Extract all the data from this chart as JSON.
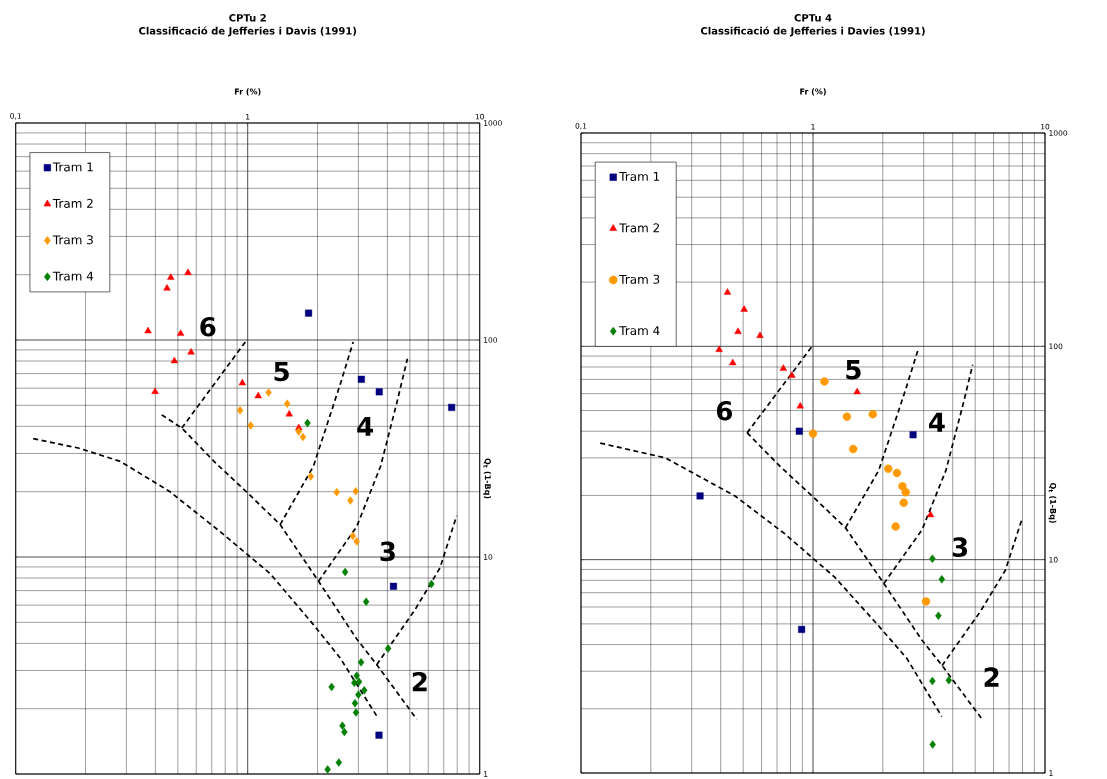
{
  "chart_data": [
    {
      "type": "scatter",
      "title": "CPTu 2",
      "subtitle": "Classificació de Jefferies i Davis (1991)",
      "xlabel": "Fr (%)",
      "ylabel": "Q$_{t}$ (1-Bq)",
      "log": "xy",
      "grid": true,
      "legend": "top left",
      "xlim": [
        0.1,
        10
      ],
      "ylim": [
        1,
        1000
      ],
      "xticks": [
        {
          "value": 0.1,
          "label": "0,1"
        },
        1,
        10
      ],
      "yticks": [
        1,
        10,
        100,
        1000
      ],
      "series": [
        {
          "name": "Tram 1",
          "marker": "square",
          "color": "#000080",
          "x": [
            1.83,
            3.09,
            3.69,
            7.57,
            4.25,
            3.68
          ],
          "values": [
            133,
            65.9,
            57.7,
            48.9,
            7.33,
            1.51
          ]
        },
        {
          "name": "Tram 2",
          "marker": "triangle",
          "color": "#ff0000",
          "x": [
            0.553,
            0.466,
            0.449,
            0.372,
            0.514,
            0.57,
            0.483,
            0.399,
            0.948,
            1.11,
            1.51,
            1.66
          ],
          "values": [
            204,
            194,
            173,
            110,
            107,
            87.7,
            80,
            57.7,
            63.3,
            55.2,
            45.5,
            39.3
          ]
        },
        {
          "name": "Tram 3",
          "marker": "diamond",
          "color": "#ff9900",
          "x": [
            1.23,
            1.48,
            0.927,
            1.03,
            1.66,
            1.73,
            1.87,
            2.42,
            2.92,
            2.77,
            2.84,
            2.95
          ],
          "values": [
            57.3,
            50.9,
            47.4,
            40.4,
            37.9,
            35.7,
            23.5,
            19.9,
            20.1,
            18.2,
            12.5,
            11.8
          ]
        },
        {
          "name": "Tram 4",
          "marker": "diamond",
          "color": "#008000",
          "x": [
            1.81,
            2.63,
            3.24,
            6.19,
            4.03,
            3.08,
            2.95,
            3.02,
            2.88,
            3.18,
            3.0,
            2.3,
            2.9,
            2.93,
            2.56,
            2.61,
            2.47,
            2.21
          ],
          "values": [
            41.4,
            8.53,
            6.22,
            7.51,
            3.79,
            3.27,
            2.84,
            2.66,
            2.63,
            2.43,
            2.32,
            2.52,
            2.12,
            1.92,
            1.67,
            1.56,
            1.13,
            1.05
          ]
        },
        {
          "type": "line",
          "line_style": "dashed",
          "marker": "none",
          "color": "#000000",
          "x": [
            0.119,
            0.186,
            0.282,
            0.459,
            0.76,
            1.25,
            1.92,
            2.5,
            3.6
          ],
          "values": [
            35.1,
            31.8,
            27.6,
            20.1,
            13.1,
            8.38,
            4.88,
            3.43,
            1.85
          ]
        },
        {
          "type": "line",
          "line_style": "dashed",
          "marker": "none",
          "color": "#000000",
          "x": [
            0.426,
            0.52,
            0.723,
            0.991,
            1.38,
            2.02,
            2.95,
            3.6,
            5.35
          ],
          "values": [
            45.2,
            39.3,
            27.3,
            19.9,
            14.1,
            7.73,
            4.19,
            3.19,
            1.79
          ]
        },
        {
          "type": "line",
          "line_style": "dashed",
          "marker": "none",
          "color": "#000000",
          "x": [
            0.52,
            0.984
          ],
          "values": [
            39.3,
            99
          ]
        },
        {
          "type": "line",
          "line_style": "dashed",
          "marker": "none",
          "color": "#000000",
          "x": [
            1.38,
            1.92,
            2.5,
            2.85
          ],
          "values": [
            14.1,
            26.2,
            62.1,
            98
          ]
        },
        {
          "type": "line",
          "line_style": "dashed",
          "marker": "none",
          "color": "#000000",
          "x": [
            2.02,
            2.95,
            3.74,
            4.39,
            4.88
          ],
          "values": [
            7.73,
            13.8,
            26.2,
            51.2,
            82
          ]
        },
        {
          "type": "line",
          "line_style": "dashed",
          "marker": "none",
          "color": "#000000",
          "x": [
            3.6,
            5.26,
            6.74,
            7.96
          ],
          "values": [
            3.19,
            5.71,
            8.9,
            15.5
          ]
        }
      ],
      "annotations": [
        "6",
        "5",
        "4",
        "3",
        "2"
      ]
    },
    {
      "type": "scatter",
      "title": "CPTu 4",
      "subtitle": "Classificació de Jefferies i Davies (1991)",
      "xlabel": "Fr (%)",
      "ylabel": "Q$_{t}$ (1-Bq)",
      "log": "xy",
      "grid": true,
      "legend": "top left",
      "xlim": [
        0.1,
        10
      ],
      "ylim": [
        1,
        1000
      ],
      "xticks": [
        {
          "value": 0.1,
          "label": "0,1"
        },
        1,
        10
      ],
      "yticks": [
        1,
        10,
        100,
        1000
      ],
      "series": [
        {
          "name": "Tram 1",
          "marker": "square",
          "color": "#000080",
          "x": [
            0.873,
            2.7,
            0.326,
            0.893
          ],
          "values": [
            40,
            38.5,
            19.9,
            4.71
          ]
        },
        {
          "name": "Tram 2",
          "marker": "triangle",
          "color": "#ff0000",
          "x": [
            0.428,
            0.505,
            0.475,
            0.591,
            0.394,
            0.451,
            0.745,
            0.811,
            1.55,
            0.881,
            3.21
          ],
          "values": [
            179,
            149,
            117,
            112,
            96.4,
            83.6,
            78.7,
            73,
            61.1,
            52.4,
            16.2
          ]
        },
        {
          "name": "Tram 3",
          "marker": "circle",
          "color": "#ff9900",
          "x": [
            1.12,
            1.4,
            1.81,
            1.0,
            1.49,
            2.11,
            2.3,
            2.43,
            2.51,
            2.46,
            2.27,
            3.07
          ],
          "values": [
            68.5,
            46.8,
            48.1,
            39,
            33,
            26.7,
            25.5,
            22.1,
            20.7,
            18.5,
            14.3,
            6.37
          ]
        },
        {
          "name": "Tram 4",
          "marker": "diamond",
          "color": "#008000",
          "x": [
            3.27,
            3.59,
            3.47,
            3.27,
            3.85,
            3.28
          ],
          "values": [
            10.1,
            8.09,
            5.46,
            2.7,
            2.72,
            1.36
          ]
        },
        {
          "type": "line",
          "line_style": "dashed",
          "marker": "none",
          "color": "#000000",
          "x": [
            0.121,
            0.231,
            0.461,
            0.757,
            1.24,
            1.91,
            2.54,
            3.59
          ],
          "values": [
            35.2,
            30,
            19.9,
            13.2,
            8.28,
            4.92,
            3.44,
            1.84
          ]
        },
        {
          "type": "line",
          "line_style": "dashed",
          "marker": "none",
          "color": "#000000",
          "x": [
            0.52,
            0.723,
            0.991,
            1.38,
            2.02,
            2.95,
            3.6,
            5.35
          ],
          "values": [
            39.3,
            27.3,
            19.9,
            14.1,
            7.73,
            4.19,
            3.19,
            1.79
          ]
        },
        {
          "type": "line",
          "line_style": "dashed",
          "marker": "none",
          "color": "#000000",
          "x": [
            0.52,
            0.984
          ],
          "values": [
            39.3,
            99
          ]
        },
        {
          "type": "line",
          "line_style": "dashed",
          "marker": "none",
          "color": "#000000",
          "x": [
            1.38,
            1.92,
            2.5,
            2.85
          ],
          "values": [
            14.1,
            26.2,
            62.1,
            98
          ]
        },
        {
          "type": "line",
          "line_style": "dashed",
          "marker": "none",
          "color": "#000000",
          "x": [
            2.02,
            2.95,
            3.74,
            4.39,
            4.88
          ],
          "values": [
            7.73,
            13.8,
            26.2,
            51.2,
            82
          ]
        },
        {
          "type": "line",
          "line_style": "dashed",
          "marker": "none",
          "color": "#000000",
          "x": [
            3.6,
            5.26,
            6.74,
            7.96
          ],
          "values": [
            3.19,
            5.71,
            8.9,
            15.5
          ]
        }
      ],
      "annotations": [
        "5",
        "6",
        "4",
        "3",
        "2"
      ]
    }
  ]
}
